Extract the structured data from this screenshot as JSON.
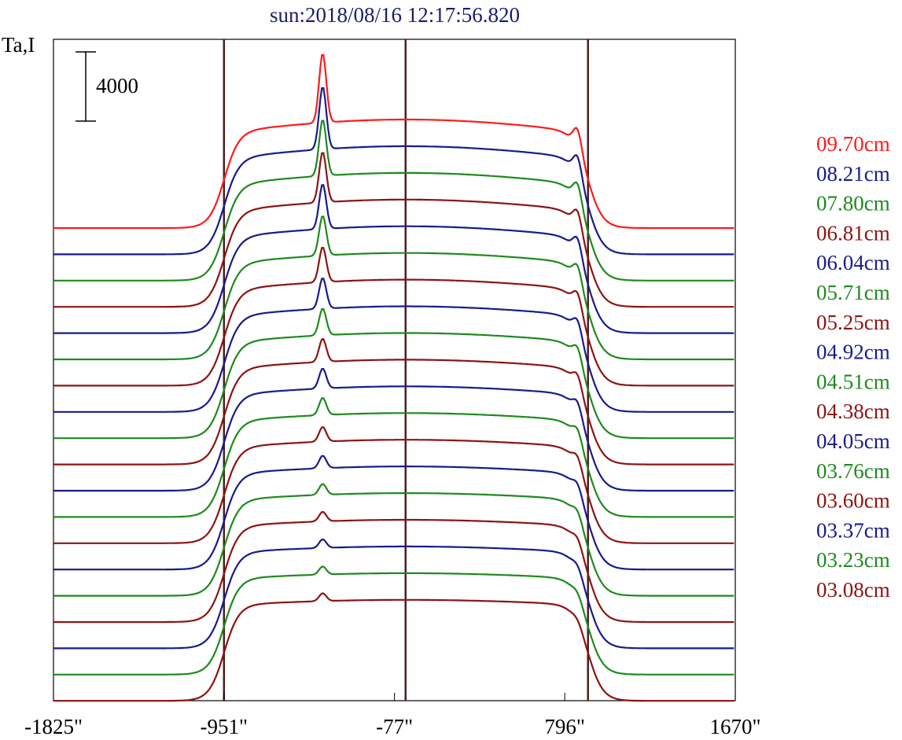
{
  "chart_data": {
    "type": "line",
    "title": "sun:2018/08/16 12:17:56.820",
    "ylabel": "Ta,I",
    "scale_bar_label": "4000",
    "scale_bar_value": 4000,
    "xlim": [
      -1825,
      1670
    ],
    "x_ticks": [
      -1825,
      -951,
      -77,
      796,
      1670
    ],
    "x_tick_labels": [
      "-1825\"",
      "-951\"",
      "-77\"",
      "796\"",
      "1670\""
    ],
    "vertical_markers": [
      -951,
      -20,
      915
    ],
    "grid": false,
    "legend_position": "right",
    "series": [
      {
        "name": "09.70cm",
        "color": "#ff1a1a"
      },
      {
        "name": "08.21cm",
        "color": "#1a1a8c"
      },
      {
        "name": "07.80cm",
        "color": "#1e8a1e"
      },
      {
        "name": "06.81cm",
        "color": "#8c1414"
      },
      {
        "name": "06.04cm",
        "color": "#1a1a8c"
      },
      {
        "name": "05.71cm",
        "color": "#1e8a1e"
      },
      {
        "name": "05.25cm",
        "color": "#8c1414"
      },
      {
        "name": "04.92cm",
        "color": "#1a1a8c"
      },
      {
        "name": "04.51cm",
        "color": "#1e8a1e"
      },
      {
        "name": "04.38cm",
        "color": "#8c1414"
      },
      {
        "name": "04.05cm",
        "color": "#1a1a8c"
      },
      {
        "name": "03.76cm",
        "color": "#1e8a1e"
      },
      {
        "name": "03.60cm",
        "color": "#8c1414"
      },
      {
        "name": "03.37cm",
        "color": "#1a1a8c"
      },
      {
        "name": "03.23cm",
        "color": "#1e8a1e"
      },
      {
        "name": "03.08cm",
        "color": "#8c1414"
      },
      {
        "color": "#1a1a8c"
      },
      {
        "color": "#1e8a1e"
      },
      {
        "color": "#8c1414"
      }
    ]
  }
}
